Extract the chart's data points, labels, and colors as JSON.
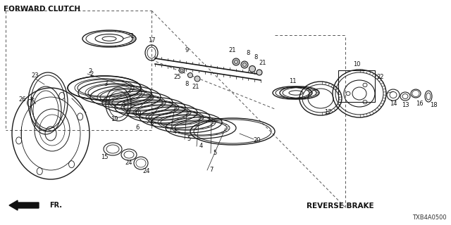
{
  "background_color": "#ffffff",
  "forward_clutch_label": "FORWARD CLUTCH",
  "reverse_brake_label": "REVERSE BRAKE",
  "fr_label": "FR.",
  "diagram_code": "TXB4A0500",
  "line_color": "#1a1a1a",
  "label_color": "#111111",
  "fig_w": 6.4,
  "fig_h": 3.2,
  "dpi": 100
}
